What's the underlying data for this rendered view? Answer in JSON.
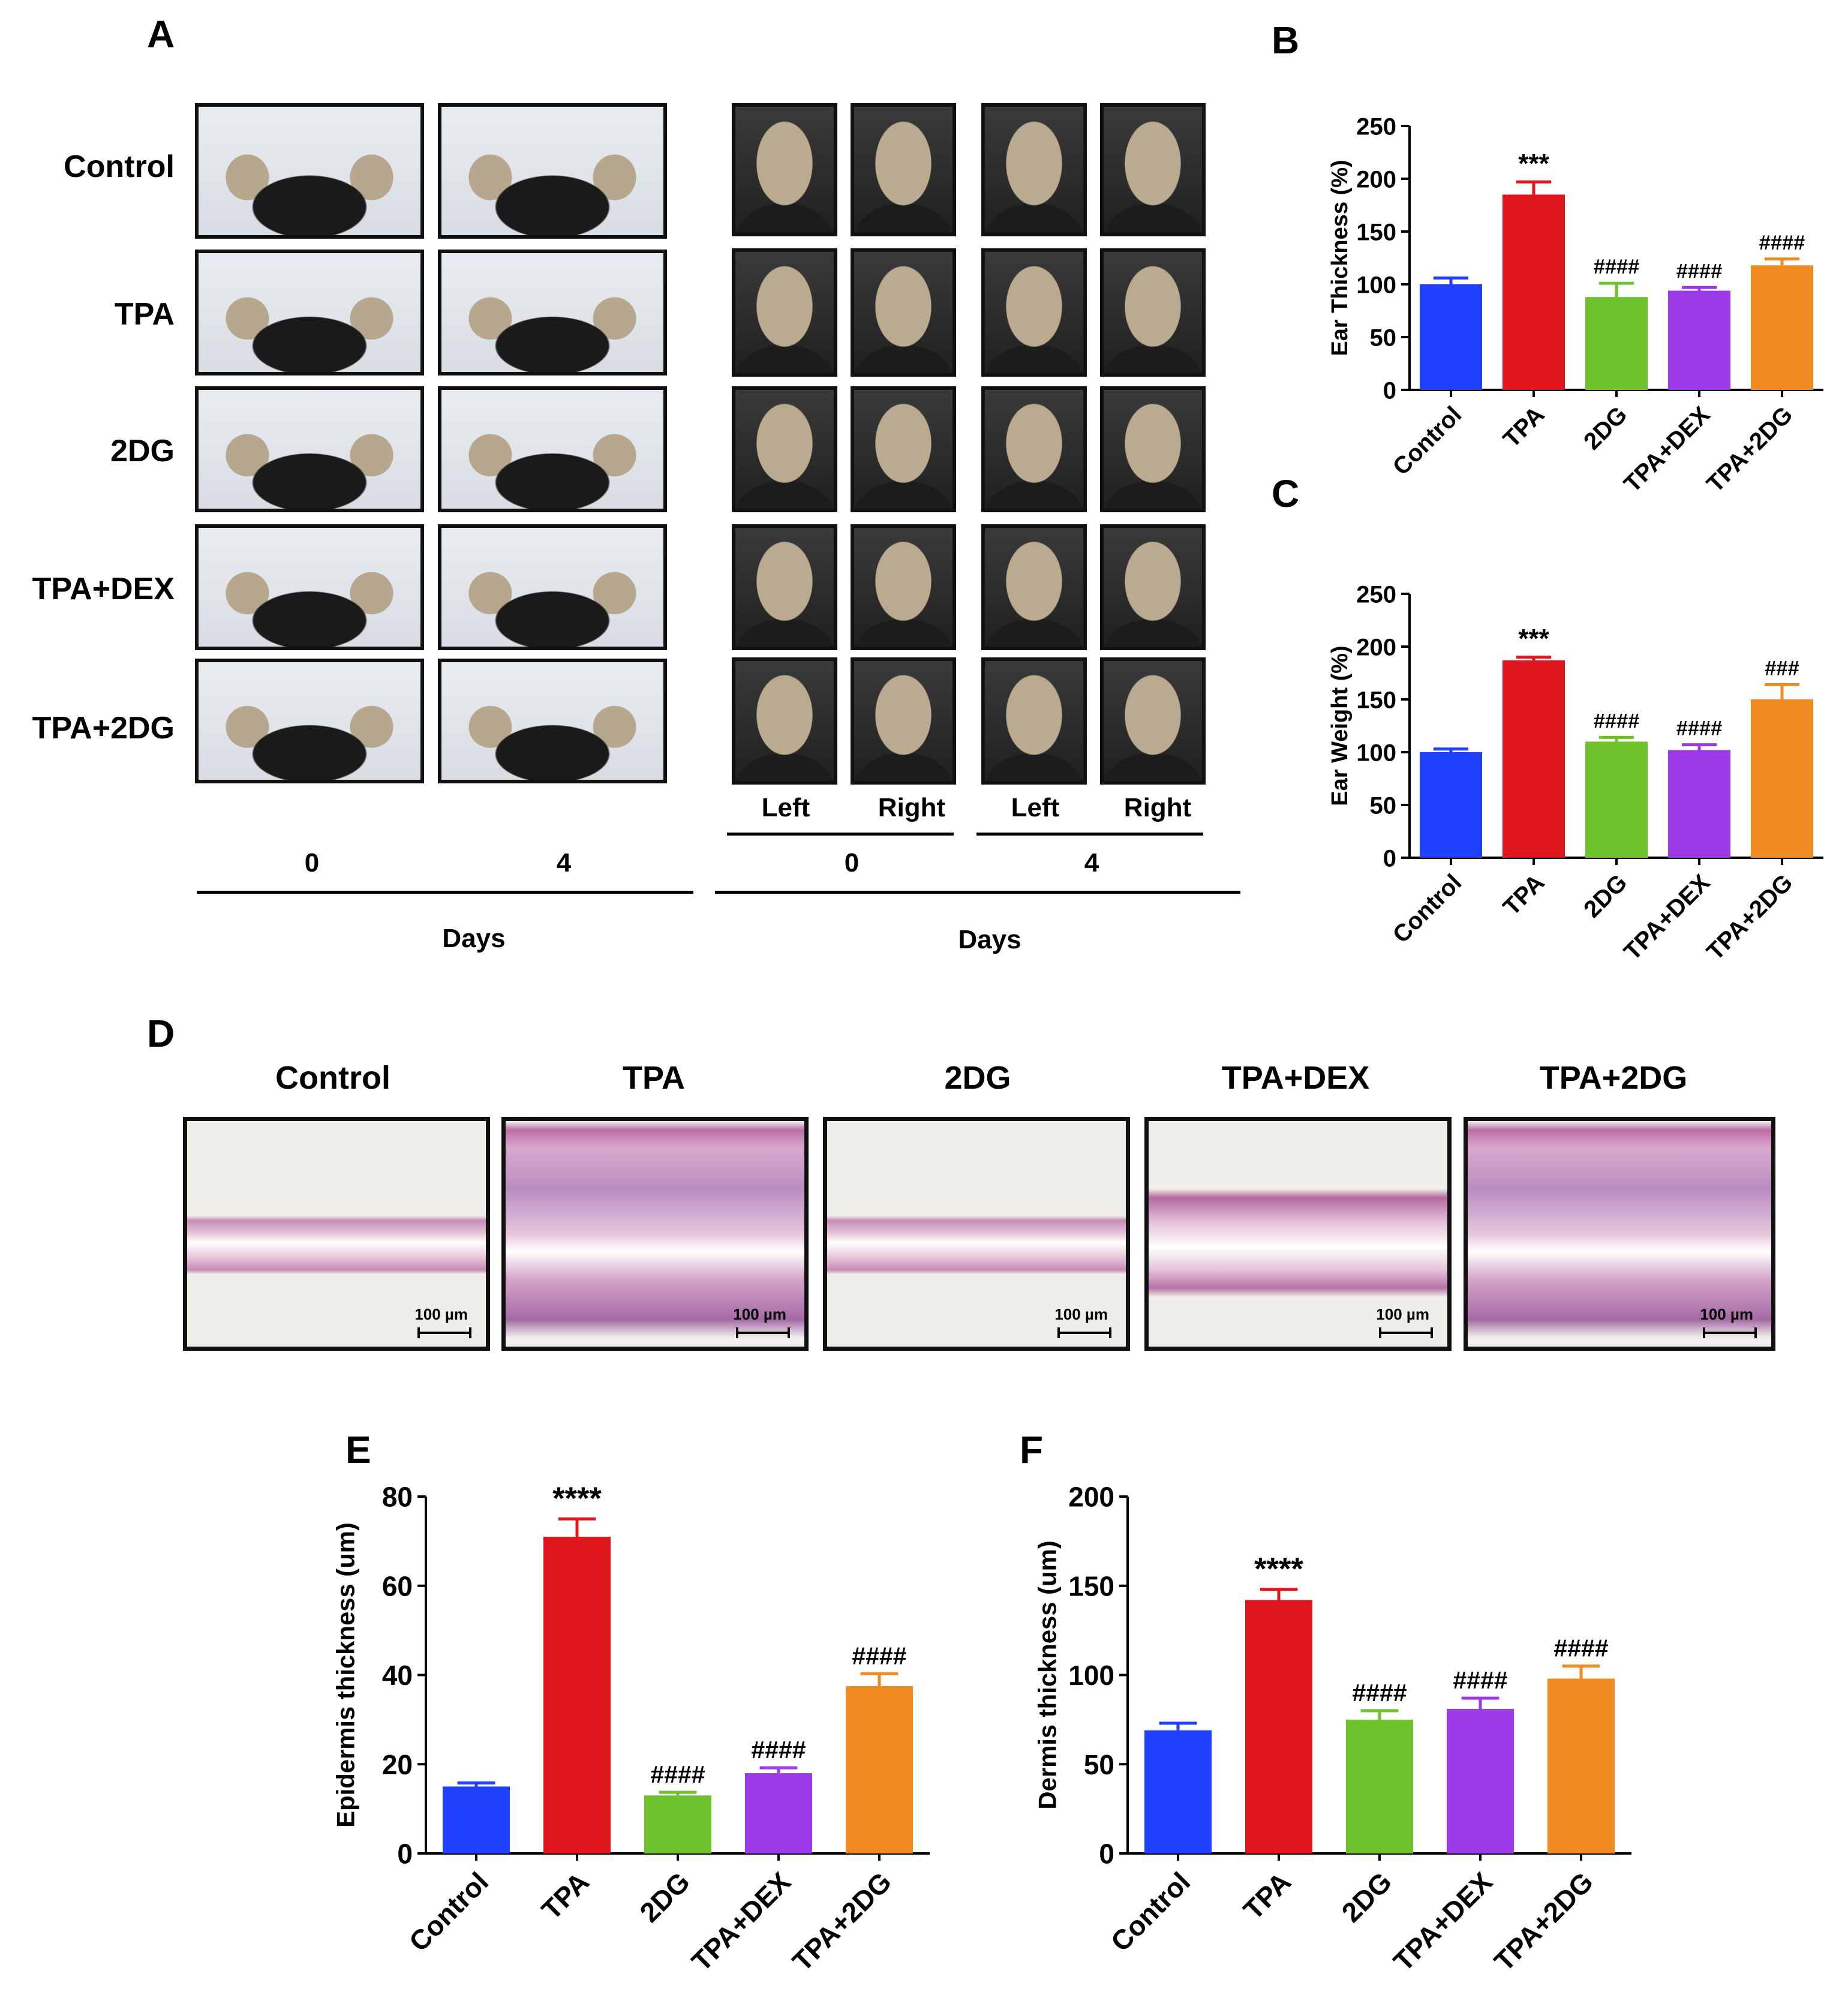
{
  "panel_labels": {
    "a": "A",
    "b": "B",
    "c": "C",
    "d": "D",
    "e": "E",
    "f": "F"
  },
  "groups": [
    "Control",
    "TPA",
    "2DG",
    "TPA+DEX",
    "TPA+2DG"
  ],
  "panel_a": {
    "day_labels_left": [
      "0",
      "4"
    ],
    "days_label_left": "Days",
    "ear_side_labels": [
      "Left",
      "Right",
      "Left",
      "Right"
    ],
    "day_labels_right": [
      "0",
      "4"
    ],
    "days_label_right": "Days"
  },
  "panel_d": {
    "titles": [
      "Control",
      "TPA",
      "2DG",
      "TPA+DEX",
      "TPA+2DG"
    ],
    "scale_label": "100 µm"
  },
  "chart_data": [
    {
      "id": "B",
      "type": "bar",
      "ylabel": "Ear Thickness (%)",
      "ylim": [
        0,
        250
      ],
      "yticks": [
        0,
        50,
        100,
        150,
        200,
        250
      ],
      "categories": [
        "Control",
        "TPA",
        "2DG",
        "TPA+DEX",
        "TPA+2DG"
      ],
      "values": [
        100,
        185,
        88,
        94,
        118
      ],
      "errors": [
        6,
        12,
        13,
        3,
        6
      ],
      "annotations": [
        "",
        "***",
        "####",
        "####",
        "####"
      ],
      "colors": [
        "#1f3fff",
        "#e0161d",
        "#70c22c",
        "#9b3ae6",
        "#f08a22"
      ]
    },
    {
      "id": "C",
      "type": "bar",
      "ylabel": "Ear Weight (%)",
      "ylim": [
        0,
        250
      ],
      "yticks": [
        0,
        50,
        100,
        150,
        200,
        250
      ],
      "categories": [
        "Control",
        "TPA",
        "2DG",
        "TPA+DEX",
        "TPA+2DG"
      ],
      "values": [
        100,
        187,
        110,
        102,
        150
      ],
      "errors": [
        3,
        3,
        4,
        5,
        14
      ],
      "annotations": [
        "",
        "***",
        "####",
        "####",
        "###"
      ],
      "colors": [
        "#1f3fff",
        "#e0161d",
        "#70c22c",
        "#9b3ae6",
        "#f08a22"
      ]
    },
    {
      "id": "E",
      "type": "bar",
      "ylabel": "Epidermis thickness (um)",
      "ylim": [
        0,
        80
      ],
      "yticks": [
        0,
        20,
        40,
        60,
        80
      ],
      "categories": [
        "Control",
        "TPA",
        "2DG",
        "TPA+DEX",
        "TPA+2DG"
      ],
      "values": [
        15,
        71,
        13,
        18,
        37.5
      ],
      "errors": [
        0.8,
        4,
        0.7,
        1.2,
        2.8
      ],
      "annotations": [
        "",
        "****",
        "####",
        "####",
        "####"
      ],
      "colors": [
        "#1f3fff",
        "#e0161d",
        "#70c22c",
        "#9b3ae6",
        "#f08a22"
      ]
    },
    {
      "id": "F",
      "type": "bar",
      "ylabel": "Dermis thickness (um)",
      "ylim": [
        0,
        200
      ],
      "yticks": [
        0,
        50,
        100,
        150,
        200
      ],
      "categories": [
        "Control",
        "TPA",
        "2DG",
        "TPA+DEX",
        "TPA+2DG"
      ],
      "values": [
        69,
        142,
        75,
        81,
        98
      ],
      "errors": [
        4,
        6,
        5,
        6,
        7
      ],
      "annotations": [
        "",
        "****",
        "####",
        "####",
        "####"
      ],
      "colors": [
        "#1f3fff",
        "#e0161d",
        "#70c22c",
        "#9b3ae6",
        "#f08a22"
      ]
    }
  ]
}
